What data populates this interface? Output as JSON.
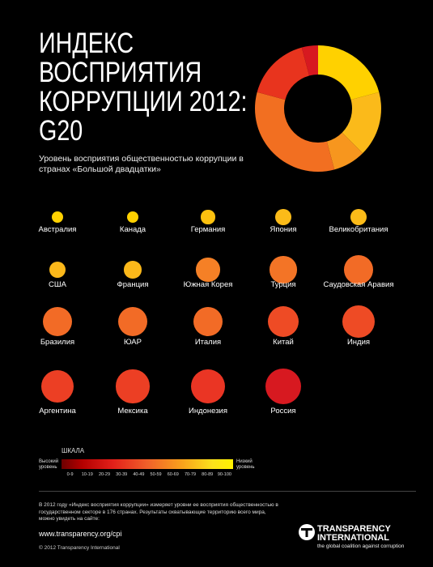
{
  "title_lines": [
    "ИНДЕКС",
    "ВОСПРИЯТИЯ",
    "КОРРУПЦИИ 2012:",
    "G20"
  ],
  "subtitle": "Уровень восприятия общественностью коррупции в странах «Большой двадцатки»",
  "chart_data": [
    {
      "type": "pie",
      "values": [
        5,
        4,
        2,
        8,
        4,
        1
      ],
      "colors": [
        "#ffd100",
        "#fbba1a",
        "#f7961e",
        "#f26f21",
        "#e8341e",
        "#d71920"
      ]
    },
    {
      "type": "scatter",
      "categories": [
        "Австралия",
        "Канада",
        "Германия",
        "Япония",
        "Великобритания",
        "США",
        "Франция",
        "Южная Корея",
        "Турция",
        "Саудовская Аравия",
        "Бразилия",
        "ЮАР",
        "Италия",
        "Китай",
        "Индия",
        "Аргентина",
        "Мексика",
        "Индонезия",
        "Россия"
      ],
      "values": [
        85,
        84,
        79,
        74,
        74,
        73,
        71,
        56,
        49,
        44,
        43,
        43,
        42,
        39,
        36,
        35,
        34,
        32,
        28
      ],
      "colors": [
        "#ffd100",
        "#ffd100",
        "#fdc10f",
        "#fbbb19",
        "#fbbb19",
        "#fbb81a",
        "#fbb81a",
        "#f58026",
        "#f37426",
        "#f26b26",
        "#f26b26",
        "#f26b26",
        "#f26b26",
        "#ee4b25",
        "#ee4b25",
        "#ec3f24",
        "#ec3f24",
        "#ea3524",
        "#d71920"
      ]
    }
  ],
  "scale": {
    "title": "ШКАЛА",
    "high_label": "Высокий уровень",
    "low_label": "Низкий уровень",
    "ticks": [
      "0-9",
      "10-19",
      "20-29",
      "30-39",
      "40-49",
      "50-59",
      "60-69",
      "70-79",
      "80-89",
      "90-100"
    ]
  },
  "footer": {
    "note": "В 2012 году «Индекс восприятия коррупции» измеряет уровни ее восприятия общественностью в государственном секторе в 176 странах. Результаты охватывающие территорию всего мира, можно увидеть на сайте:",
    "url": "www.transparency.org/cpi",
    "copyright": "© 2012 Transparency International"
  },
  "org": {
    "name_line1": "TRANSPARENCY",
    "name_line2": "INTERNATIONAL",
    "tagline": "the global coalition against corruption"
  }
}
